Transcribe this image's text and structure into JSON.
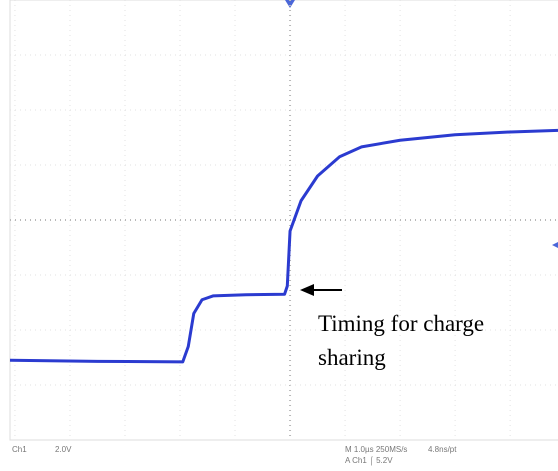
{
  "chart_data": {
    "type": "line",
    "annotation": [
      "Timing for charge",
      "sharing"
    ],
    "readouts": [
      "Ch1",
      "2.0V",
      "M 1.0µs 250MS/s",
      "4.8ns/pt",
      "A Ch1 ⌠ 5.2V"
    ],
    "x": [
      -5.09,
      -3.5,
      -1.95,
      -1.85,
      -1.75,
      -1.6,
      -1.4,
      -0.8,
      -0.1,
      -0.05,
      0,
      0.2,
      0.5,
      0.9,
      1.3,
      2,
      3,
      4,
      4.87
    ],
    "series": [
      {
        "color": "#2b3bd0",
        "values": [
          -2.55,
          -2.57,
          -2.58,
          -2.3,
          -1.7,
          -1.45,
          -1.38,
          -1.36,
          -1.35,
          -1.2,
          -0.2,
          0.35,
          0.8,
          1.15,
          1.33,
          1.45,
          1.55,
          1.6,
          1.63
        ]
      }
    ],
    "xlim": [
      -5.09,
      4.87
    ],
    "ylim": [
      -4,
      4
    ],
    "xticks": [
      -5,
      -4,
      -3,
      -2,
      -1,
      0,
      1,
      2,
      3,
      4
    ],
    "yticks": [
      -3,
      -2,
      -1,
      0,
      1,
      2,
      3
    ],
    "grid": true
  }
}
